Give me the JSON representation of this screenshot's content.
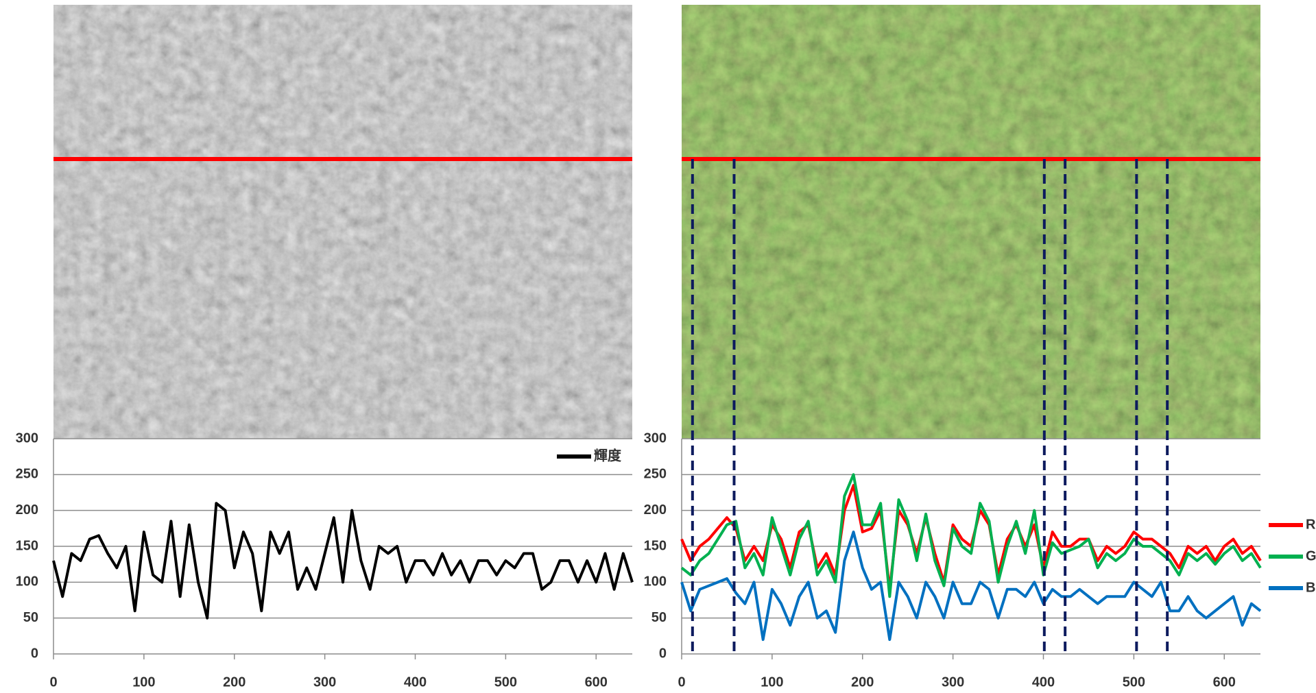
{
  "chart_data": [
    {
      "type": "line",
      "x": [
        0,
        10,
        20,
        30,
        40,
        50,
        60,
        70,
        80,
        90,
        100,
        110,
        120,
        130,
        140,
        150,
        160,
        170,
        180,
        190,
        200,
        210,
        220,
        230,
        240,
        250,
        260,
        270,
        280,
        290,
        300,
        310,
        320,
        330,
        340,
        350,
        360,
        370,
        380,
        390,
        400,
        410,
        420,
        430,
        440,
        450,
        460,
        470,
        480,
        490,
        500,
        510,
        520,
        530,
        540,
        550,
        560,
        570,
        580,
        590,
        600,
        610,
        620,
        630,
        640
      ],
      "series": [
        {
          "name": "輝度",
          "color": "#000000",
          "values": [
            130,
            80,
            140,
            130,
            160,
            165,
            140,
            120,
            150,
            60,
            170,
            110,
            100,
            185,
            80,
            180,
            100,
            50,
            210,
            200,
            120,
            170,
            140,
            60,
            170,
            140,
            170,
            90,
            120,
            90,
            140,
            190,
            100,
            200,
            130,
            90,
            150,
            140,
            150,
            100,
            130,
            130,
            110,
            140,
            110,
            130,
            100,
            130,
            130,
            110,
            130,
            120,
            140,
            140,
            90,
            100,
            130,
            130,
            100,
            130,
            100,
            140,
            90,
            140,
            100
          ]
        }
      ],
      "xlim": [
        0,
        640
      ],
      "ylim": [
        0,
        300
      ],
      "xticks": [
        0,
        100,
        200,
        300,
        400,
        500,
        600
      ],
      "yticks": [
        0,
        50,
        100,
        150,
        200,
        250,
        300
      ],
      "grid": true,
      "legend": "top right"
    },
    {
      "type": "line",
      "x": [
        0,
        10,
        20,
        30,
        40,
        50,
        60,
        70,
        80,
        90,
        100,
        110,
        120,
        130,
        140,
        150,
        160,
        170,
        180,
        190,
        200,
        210,
        220,
        230,
        240,
        250,
        260,
        270,
        280,
        290,
        300,
        310,
        320,
        330,
        340,
        350,
        360,
        370,
        380,
        390,
        400,
        410,
        420,
        430,
        440,
        450,
        460,
        470,
        480,
        490,
        500,
        510,
        520,
        530,
        540,
        550,
        560,
        570,
        580,
        590,
        600,
        610,
        620,
        630,
        640
      ],
      "series": [
        {
          "name": "R",
          "color": "#ff0000",
          "values": [
            160,
            130,
            150,
            160,
            175,
            190,
            175,
            130,
            150,
            130,
            180,
            160,
            120,
            170,
            180,
            120,
            140,
            110,
            200,
            235,
            170,
            175,
            200,
            90,
            200,
            180,
            140,
            190,
            140,
            100,
            180,
            160,
            150,
            200,
            180,
            110,
            160,
            180,
            150,
            180,
            120,
            170,
            150,
            150,
            160,
            160,
            130,
            150,
            140,
            150,
            170,
            160,
            160,
            150,
            140,
            120,
            150,
            140,
            150,
            130,
            150,
            160,
            140,
            150,
            130
          ]
        },
        {
          "name": "G",
          "color": "#00b050",
          "values": [
            120,
            110,
            130,
            140,
            160,
            180,
            185,
            120,
            140,
            110,
            190,
            150,
            110,
            160,
            185,
            110,
            130,
            100,
            220,
            250,
            180,
            180,
            210,
            80,
            215,
            185,
            130,
            195,
            130,
            95,
            175,
            150,
            140,
            210,
            185,
            100,
            150,
            185,
            140,
            200,
            110,
            155,
            140,
            145,
            150,
            160,
            120,
            140,
            130,
            140,
            160,
            150,
            150,
            140,
            130,
            110,
            140,
            130,
            140,
            125,
            140,
            150,
            130,
            140,
            120
          ]
        },
        {
          "name": "B",
          "color": "#0070c0",
          "values": [
            100,
            60,
            90,
            95,
            100,
            105,
            85,
            70,
            100,
            20,
            90,
            70,
            40,
            80,
            100,
            50,
            60,
            30,
            130,
            170,
            120,
            90,
            100,
            20,
            100,
            80,
            50,
            100,
            80,
            50,
            100,
            70,
            70,
            100,
            90,
            50,
            90,
            90,
            80,
            100,
            70,
            90,
            80,
            80,
            90,
            80,
            70,
            80,
            80,
            80,
            100,
            90,
            80,
            100,
            60,
            60,
            80,
            60,
            50,
            60,
            70,
            80,
            40,
            70,
            60
          ]
        }
      ],
      "xlim": [
        0,
        640
      ],
      "ylim": [
        0,
        300
      ],
      "xticks": [
        0,
        100,
        200,
        300,
        400,
        500,
        600
      ],
      "yticks": [
        0,
        50,
        100,
        150,
        200,
        250,
        300
      ],
      "x_markers": [
        12,
        58,
        401,
        424,
        503,
        537
      ],
      "grid": true,
      "legend": "right"
    }
  ]
}
